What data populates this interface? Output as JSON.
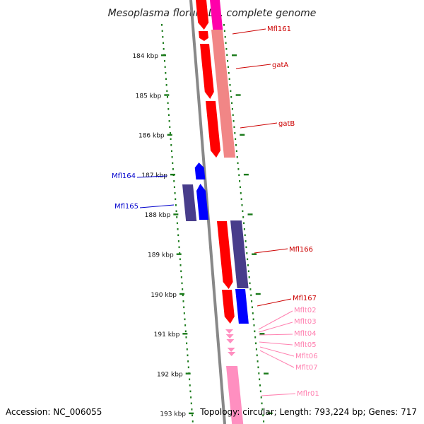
{
  "title": "Mesoplasma florum L1, complete genome",
  "footer": {
    "accession": "Accession: NC_006055",
    "summary": "Topology: circular; Length: 793,224 bp; Genes: 717"
  },
  "ruler_ticks": [
    "184 kbp",
    "185 kbp",
    "186 kbp",
    "187 kbp",
    "188 kbp",
    "189 kbp",
    "190 kbp",
    "191 kbp",
    "192 kbp",
    "193 kbp"
  ],
  "colors": {
    "forward_cds": "#ff0000",
    "reverse_cds": "#0000ff",
    "forward_feature": "#f08080",
    "reverse_feature": "#483d8b",
    "trna": "#ff8fc0",
    "magenta": "#ff00aa",
    "ruler": "#1a7a1a",
    "forward_label": "#cc0000",
    "reverse_label": "#0000cc",
    "rna_label": "#ff80b0",
    "backbone": "#888888"
  },
  "gene_labels": [
    {
      "text": "Mfl161",
      "strand": "forward"
    },
    {
      "text": "gatA",
      "strand": "forward"
    },
    {
      "text": "gatB",
      "strand": "forward"
    },
    {
      "text": "Mfl164",
      "strand": "reverse"
    },
    {
      "text": "Mfl165",
      "strand": "reverse"
    },
    {
      "text": "Mfl166",
      "strand": "forward"
    },
    {
      "text": "Mfl167",
      "strand": "forward"
    },
    {
      "text": "Mflt02",
      "strand": "rna"
    },
    {
      "text": "Mflt03",
      "strand": "rna"
    },
    {
      "text": "Mflt04",
      "strand": "rna"
    },
    {
      "text": "Mflt05",
      "strand": "rna"
    },
    {
      "text": "Mflt06",
      "strand": "rna"
    },
    {
      "text": "Mflt07",
      "strand": "rna"
    },
    {
      "text": "Mflr01",
      "strand": "rna"
    }
  ]
}
